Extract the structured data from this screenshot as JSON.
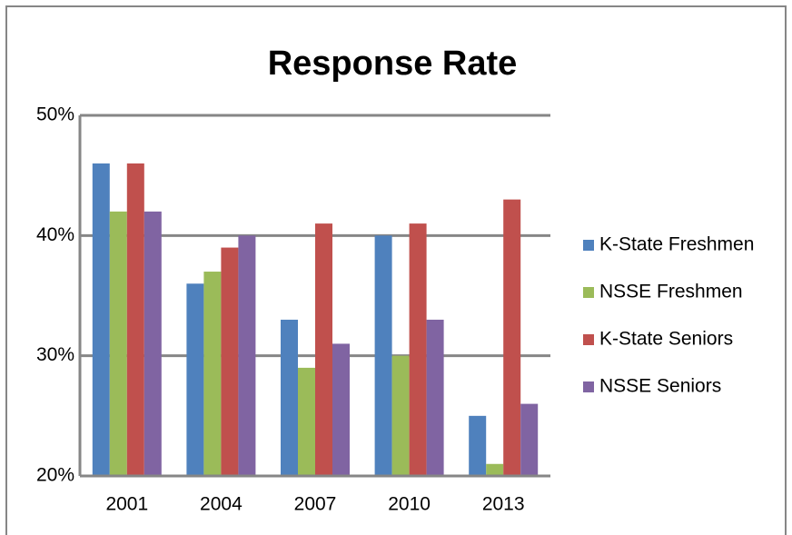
{
  "chart_data": {
    "type": "bar",
    "title": "Response Rate",
    "categories": [
      "2001",
      "2004",
      "2007",
      "2010",
      "2013"
    ],
    "series": [
      {
        "name": "K-State Freshmen",
        "color": "#4f81bd",
        "values": [
          46,
          36,
          33,
          40,
          25
        ]
      },
      {
        "name": "NSSE Freshmen",
        "color": "#9bbb59",
        "values": [
          42,
          37,
          29,
          30,
          21
        ]
      },
      {
        "name": "K-State Seniors",
        "color": "#c0504d",
        "values": [
          46,
          39,
          41,
          41,
          43
        ]
      },
      {
        "name": "NSSE Seniors",
        "color": "#8064a2",
        "values": [
          42,
          40,
          31,
          33,
          26
        ]
      }
    ],
    "ylim": [
      20,
      50
    ],
    "yticks": [
      {
        "value": 20,
        "label": "20%"
      },
      {
        "value": 30,
        "label": "30%"
      },
      {
        "value": 40,
        "label": "40%"
      },
      {
        "value": 50,
        "label": "50%"
      }
    ],
    "grid": true,
    "legend": "right"
  }
}
